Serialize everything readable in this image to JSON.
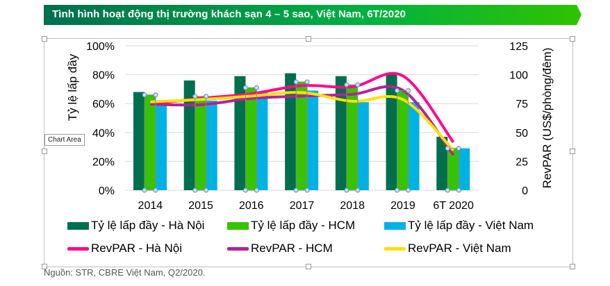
{
  "header": {
    "title": "Tình hình hoạt động thị trường khách sạn 4 – 5 sao, Việt Nam, 6T/2020"
  },
  "tooltip": "Chart Area",
  "footer": "Nguồn: STR, CBRE Việt Nam, Q2/2020.",
  "chart_data": {
    "type": "bar",
    "categories": [
      "2014",
      "2015",
      "2016",
      "2017",
      "2018",
      "2019",
      "6T 2020"
    ],
    "ylabel": "Tỷ lệ lấp đầy",
    "y2label": "RevPAR (US$/phòng/đêm)",
    "ylim": [
      0,
      100
    ],
    "y_ticks": [
      "0%",
      "20%",
      "40%",
      "60%",
      "80%",
      "100%"
    ],
    "y2lim": [
      0,
      125
    ],
    "y2_ticks": [
      "0",
      "25",
      "50",
      "75",
      "100",
      "125"
    ],
    "grid": true,
    "legend_position": "bottom",
    "bar_series": [
      {
        "name": "Tỷ lệ lấp đầy - Hà Nội",
        "color": "#006f4e",
        "values": [
          68,
          76,
          79,
          81,
          79,
          81,
          37
        ]
      },
      {
        "name": "Tỷ lệ lấp đầy - HCM",
        "color": "#37c300",
        "values": [
          66,
          65,
          71,
          75,
          73,
          69,
          29
        ]
      },
      {
        "name": "Tỷ lệ lấp đầy - Việt Nam",
        "color": "#00b2e3",
        "values": [
          61,
          62,
          68,
          69,
          61,
          61,
          29
        ]
      }
    ],
    "line_series": [
      {
        "name": "RevPAR - Hà Nội",
        "color": "#ff0a8c",
        "values": [
          74.5,
          79.5,
          83.5,
          90.5,
          89.5,
          99,
          41.5
        ]
      },
      {
        "name": "RevPAR - HCM",
        "color": "#b5219b",
        "values": [
          74.5,
          74,
          79.5,
          81.5,
          83,
          86.5,
          30.5
        ]
      },
      {
        "name": "RevPAR - Việt Nam",
        "color": "#ffe000",
        "values": [
          76.5,
          78.5,
          81.5,
          84.5,
          77,
          78.5,
          34.5
        ]
      }
    ]
  }
}
